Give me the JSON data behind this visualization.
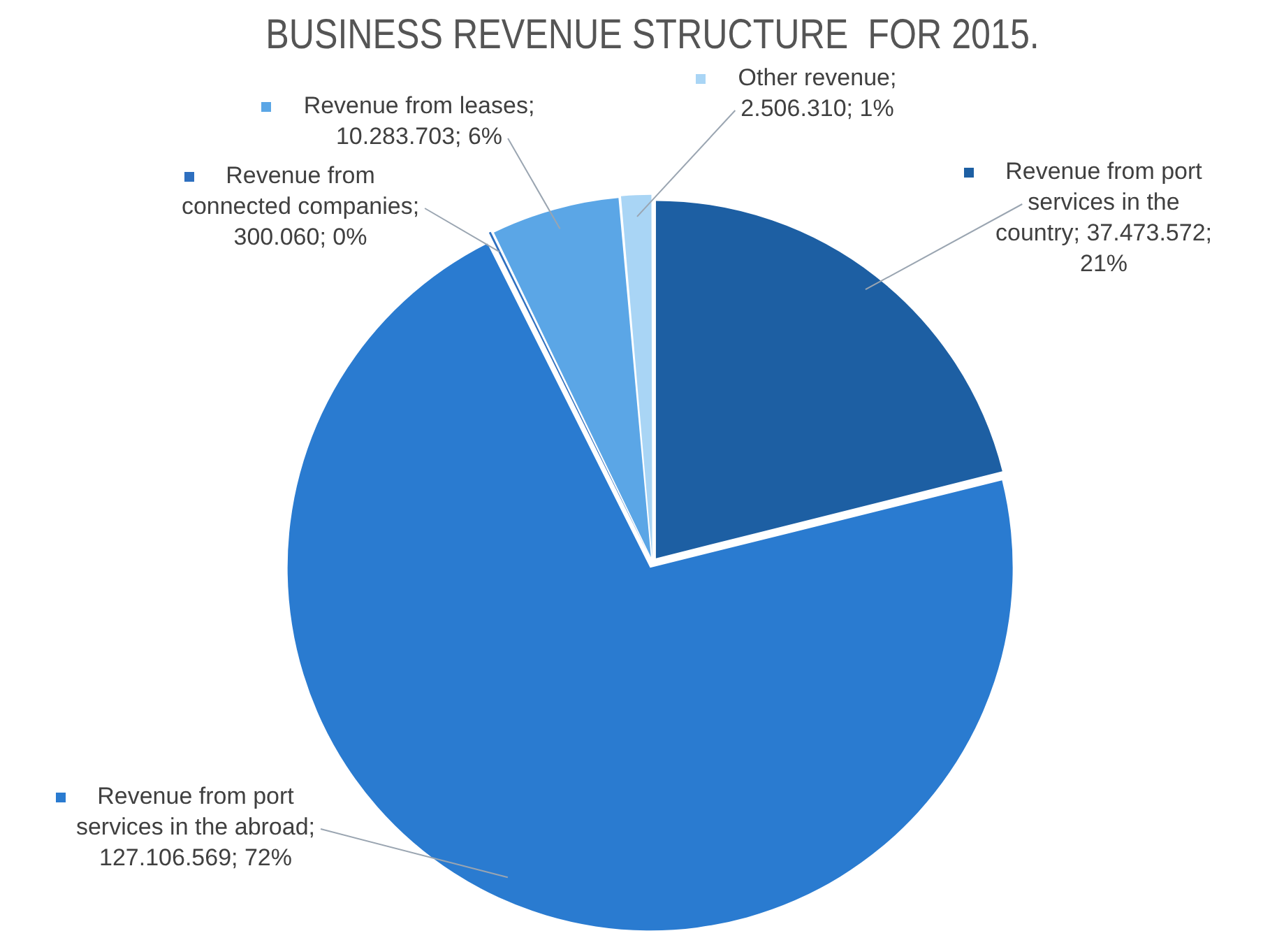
{
  "chart_data": {
    "type": "pie",
    "title": "BUSINESS REVENUE STRUCTURE  FOR 2015.",
    "categories": [
      "Revenue from port services in the country",
      "Revenue from port services in the abroad",
      "Revenue from connected companies",
      "Revenue from leases",
      "Other revenue"
    ],
    "legend": "top",
    "values": [
      37473572,
      127106569,
      300060,
      10283703,
      2506310
    ],
    "value_labels": [
      "; 37.473.572; 21%",
      "; 127.106.569; 72%",
      "; 300.060; 0%",
      "; 10.283.703; 6%",
      "; 2.506.310; 1%"
    ],
    "colors": [
      "#1d5fa3",
      "#2a7bd0",
      "#2e6fbf",
      "#5ba6e6",
      "#a9d5f5"
    ]
  }
}
